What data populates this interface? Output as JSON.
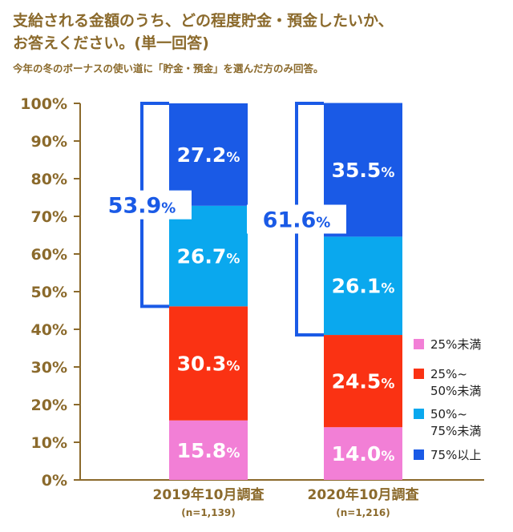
{
  "header": {
    "title_line1": "支給される金額のうち、どの程度貯金・預金したいか、",
    "title_line2": "お答えください。(単一回答)",
    "subtitle": "今年の冬のボーナスの使い道に「貯金・預金」を選んだ方のみ回答。"
  },
  "chart_data": {
    "type": "bar",
    "stacked": true,
    "ylim": [
      0,
      100
    ],
    "yticks": [
      "0%",
      "10%",
      "20%",
      "30%",
      "40%",
      "50%",
      "60%",
      "70%",
      "80%",
      "90%",
      "100%"
    ],
    "categories": [
      "2019年10月調査",
      "2020年10月調査"
    ],
    "sample_sizes": [
      "(n=1,139)",
      "(n=1,216)"
    ],
    "series": [
      {
        "name": "25%未満",
        "color": "#f27fd6",
        "values": [
          15.8,
          14.0
        ]
      },
      {
        "name": "25%~50%未満",
        "color": "#fa3213",
        "values": [
          30.3,
          24.5
        ]
      },
      {
        "name": "50%~75%未満",
        "color": "#0aa8ee",
        "values": [
          26.7,
          26.1
        ]
      },
      {
        "name": "75%以上",
        "color": "#1a5ae6",
        "values": [
          27.2,
          35.5
        ]
      }
    ],
    "bracket_totals": [
      "53.9%",
      "61.6%"
    ],
    "legend_position": "bottom-right",
    "grid": false
  }
}
